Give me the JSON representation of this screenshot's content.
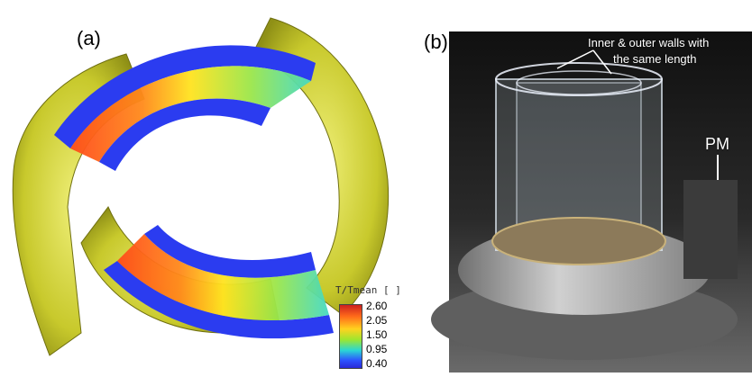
{
  "panels": {
    "a": {
      "label": "(a)"
    },
    "b": {
      "label": "(b)"
    }
  },
  "legend": {
    "title": "T/Tmean [ ]",
    "ticks": [
      "2.60",
      "2.05",
      "1.50",
      "0.95",
      "0.40"
    ]
  },
  "photo_annotations": {
    "walls_line1": "Inner & outer walls with",
    "walls_line2": "the same length",
    "pm": "PM"
  }
}
